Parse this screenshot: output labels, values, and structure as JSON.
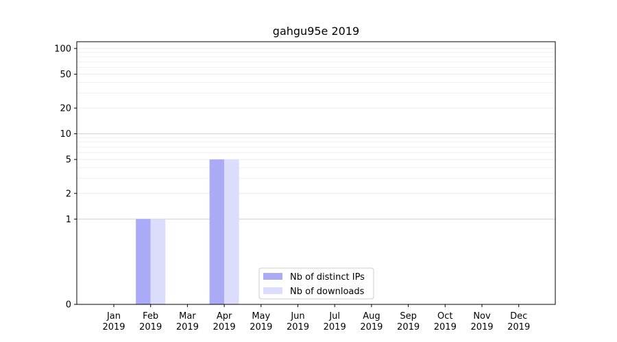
{
  "chart_data": {
    "type": "bar",
    "title": "gahgu95e 2019",
    "xlabel": "",
    "ylabel": "",
    "y_scale": "symlog",
    "ylim": [
      0,
      120
    ],
    "y_ticks": [
      0,
      1,
      2,
      5,
      10,
      20,
      50,
      100
    ],
    "categories": [
      [
        "Jan",
        "2019"
      ],
      [
        "Feb",
        "2019"
      ],
      [
        "Mar",
        "2019"
      ],
      [
        "Apr",
        "2019"
      ],
      [
        "May",
        "2019"
      ],
      [
        "Jun",
        "2019"
      ],
      [
        "Jul",
        "2019"
      ],
      [
        "Aug",
        "2019"
      ],
      [
        "Sep",
        "2019"
      ],
      [
        "Oct",
        "2019"
      ],
      [
        "Nov",
        "2019"
      ],
      [
        "Dec",
        "2019"
      ]
    ],
    "series": [
      {
        "name": "Nb of distinct IPs",
        "color": "#aaaaf7",
        "values": [
          0,
          1,
          0,
          5,
          0,
          0,
          0,
          0,
          0,
          0,
          0,
          0
        ]
      },
      {
        "name": "Nb of downloads",
        "color": "#dcdcfc",
        "values": [
          0,
          1,
          0,
          5,
          0,
          0,
          0,
          0,
          0,
          0,
          0,
          0
        ]
      }
    ],
    "grid": true,
    "legend_position": "bottom-center"
  }
}
